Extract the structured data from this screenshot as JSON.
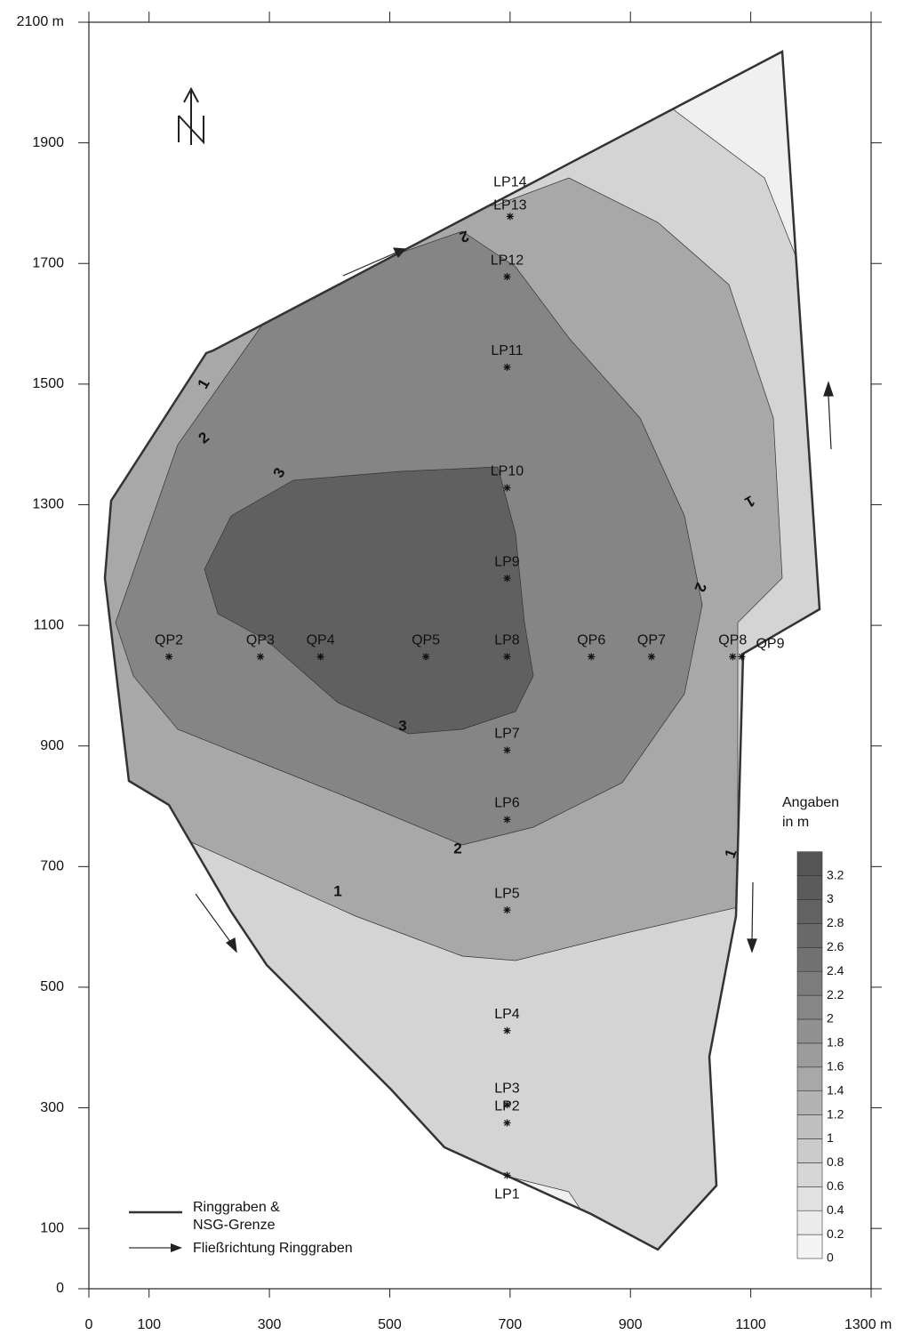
{
  "x_axis": {
    "range": [
      0,
      1300
    ],
    "ticks": [
      0,
      100,
      300,
      500,
      700,
      900,
      1100,
      {
        "value": 1300,
        "label": "1300 m"
      }
    ]
  },
  "y_axis": {
    "range": [
      0,
      2100
    ],
    "ticks": [
      0,
      100,
      300,
      500,
      700,
      900,
      1100,
      1300,
      1500,
      1700,
      1900,
      {
        "value": 2100,
        "label": "2100 m"
      }
    ]
  },
  "points": [
    {
      "name": "LP1",
      "x": 695,
      "y": 188
    },
    {
      "name": "LP2",
      "x": 695,
      "y": 275
    },
    {
      "name": "LP3",
      "x": 695,
      "y": 305
    },
    {
      "name": "LP4",
      "x": 695,
      "y": 428
    },
    {
      "name": "LP5",
      "x": 695,
      "y": 628
    },
    {
      "name": "LP6",
      "x": 695,
      "y": 778
    },
    {
      "name": "LP7",
      "x": 695,
      "y": 893
    },
    {
      "name": "LP8",
      "x": 695,
      "y": 1048
    },
    {
      "name": "LP9",
      "x": 695,
      "y": 1178
    },
    {
      "name": "LP10",
      "x": 695,
      "y": 1328
    },
    {
      "name": "LP11",
      "x": 695,
      "y": 1528
    },
    {
      "name": "LP12",
      "x": 695,
      "y": 1678
    },
    {
      "name": "LP13",
      "x": 700,
      "y": 1778
    },
    {
      "name": "LP14",
      "x": 700,
      "y": 1778
    },
    {
      "name": "QP2",
      "x": 133,
      "y": 1048
    },
    {
      "name": "QP3",
      "x": 285,
      "y": 1048
    },
    {
      "name": "QP4",
      "x": 385,
      "y": 1048
    },
    {
      "name": "QP5",
      "x": 560,
      "y": 1048
    },
    {
      "name": "QP6",
      "x": 835,
      "y": 1048
    },
    {
      "name": "QP7",
      "x": 935,
      "y": 1048
    },
    {
      "name": "QP8",
      "x": 1070,
      "y": 1048
    },
    {
      "name": "QP9",
      "x": 1085,
      "y": 1048
    }
  ],
  "contour_labels": [
    "1",
    "2",
    "3",
    "2",
    "1",
    "2",
    "3",
    "2",
    "1",
    "1"
  ],
  "legend": {
    "boundary": [
      "Ringgraben &",
      "NSG-Grenze"
    ],
    "flow": "Fließrichtung Ringgraben"
  },
  "colorbar": {
    "title": [
      "Angaben",
      "in m"
    ],
    "levels": [
      0,
      0.2,
      0.4,
      0.6,
      0.8,
      1,
      1.2,
      1.4,
      1.6,
      1.8,
      2,
      2.2,
      2.4,
      2.6,
      2.8,
      3,
      3.2
    ],
    "colors": [
      "#f4f4f4",
      "#ebebeb",
      "#e1e1e1",
      "#d6d6d6",
      "#cbcbcb",
      "#bfbfbf",
      "#b3b3b3",
      "#a8a8a8",
      "#9c9c9c",
      "#919191",
      "#868686",
      "#7c7c7c",
      "#727272",
      "#6a6a6a",
      "#626262",
      "#5b5b5b",
      "#555555"
    ]
  }
}
